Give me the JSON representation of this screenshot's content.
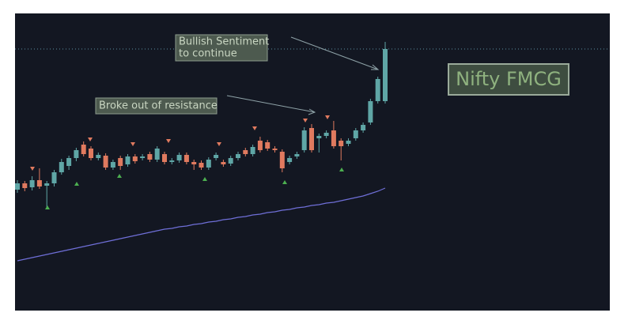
{
  "chart_data": {
    "type": "candlestick",
    "title": "Nifty FMCG",
    "annotations": [
      {
        "lines": [
          "Bullish Sentiment",
          "to continue"
        ]
      },
      {
        "lines": [
          "Broke out of resistance"
        ]
      }
    ],
    "up_color": "#5fa6a6",
    "down_color": "#e07a5f",
    "ylim": [
      0,
      376
    ],
    "open": [
      153,
      161,
      156,
      165,
      158,
      161,
      175,
      183,
      193,
      210,
      205,
      193,
      196,
      181,
      193,
      185,
      195,
      193,
      198,
      191,
      198,
      188,
      190,
      197,
      188,
      187,
      181,
      193,
      188,
      186,
      193,
      203,
      198,
      215,
      213,
      205,
      201,
      188,
      195,
      203,
      231,
      218,
      221,
      228,
      215,
      211,
      218,
      228,
      238,
      265,
      265
    ],
    "high": [
      165,
      164,
      170,
      180,
      164,
      178,
      192,
      196,
      206,
      214,
      208,
      200,
      199,
      191,
      196,
      198,
      198,
      198,
      201,
      208,
      201,
      193,
      200,
      200,
      191,
      190,
      194,
      200,
      191,
      196,
      201,
      206,
      210,
      220,
      216,
      208,
      204,
      196,
      201,
      232,
      236,
      224,
      228,
      240,
      218,
      218,
      231,
      238,
      268,
      296,
      340
    ],
    "low": [
      149,
      151,
      152,
      154,
      130,
      157,
      172,
      178,
      189,
      195,
      190,
      190,
      178,
      178,
      178,
      182,
      186,
      190,
      188,
      188,
      185,
      185,
      187,
      185,
      178,
      178,
      178,
      190,
      182,
      183,
      190,
      195,
      195,
      200,
      202,
      200,
      175,
      185,
      192,
      200,
      200,
      200,
      218,
      205,
      190,
      208,
      215,
      225,
      235,
      262,
      262
    ],
    "close": [
      161,
      155,
      165,
      157,
      161,
      175,
      188,
      193,
      203,
      198,
      193,
      197,
      181,
      188,
      183,
      195,
      189,
      195,
      191,
      205,
      188,
      190,
      197,
      188,
      185,
      181,
      191,
      197,
      185,
      193,
      198,
      198,
      207,
      203,
      205,
      203,
      180,
      193,
      198,
      228,
      203,
      221,
      225,
      208,
      208,
      215,
      228,
      235,
      265,
      293,
      331
    ],
    "series": [
      {
        "color": "#6f6fd8",
        "values": [
          63,
          65,
          67,
          69,
          71,
          73,
          75,
          77,
          79,
          81,
          83,
          85,
          87,
          89,
          91,
          93,
          95,
          97,
          99,
          101,
          103,
          104,
          106,
          107,
          109,
          110,
          112,
          113,
          115,
          116,
          118,
          119,
          121,
          122,
          124,
          125,
          127,
          128,
          130,
          131,
          133,
          134,
          136,
          137,
          139,
          141,
          143,
          145,
          148,
          151,
          155
        ]
      }
    ]
  }
}
